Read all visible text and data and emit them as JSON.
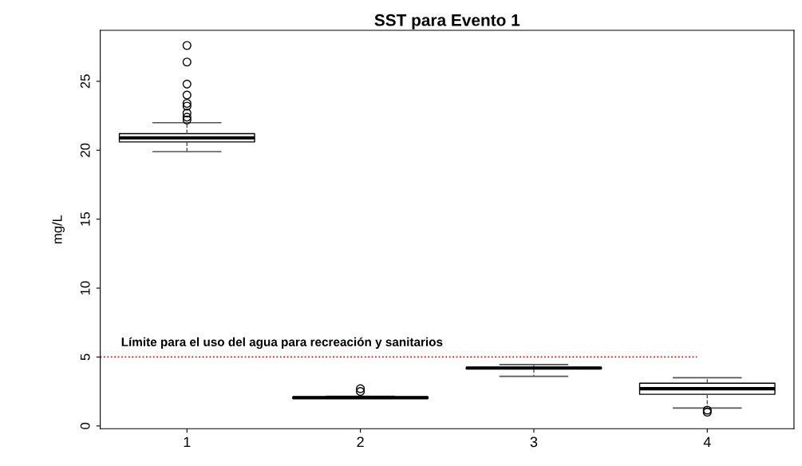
{
  "chart_data": {
    "type": "box",
    "title": "SST para Evento 1",
    "ylabel": "mg/L",
    "categories": [
      "1",
      "2",
      "3",
      "4"
    ],
    "boxes": [
      {
        "low": 19.9,
        "q1": 20.6,
        "median": 20.9,
        "q3": 21.2,
        "high": 22.0,
        "outliers": [
          22.2,
          22.4,
          22.7,
          23.2,
          23.4,
          24.0,
          24.8,
          26.4,
          27.6
        ]
      },
      {
        "low": 2.0,
        "q1": 2.0,
        "median": 2.05,
        "q3": 2.1,
        "high": 2.15,
        "outliers": [
          2.5,
          2.7
        ]
      },
      {
        "low": 3.6,
        "q1": 4.15,
        "median": 4.2,
        "q3": 4.25,
        "high": 4.45
      },
      {
        "low": 1.3,
        "q1": 2.3,
        "median": 2.7,
        "q3": 3.1,
        "high": 3.5,
        "outliers": [
          1.0,
          1.15
        ]
      }
    ],
    "ylim": [
      -0.2,
      28.7
    ],
    "yticks": [
      0,
      5,
      10,
      15,
      20,
      25
    ],
    "ref_lines": [
      {
        "axis": "y",
        "value": 5,
        "label": "Límite para el uso del agua para recreación y sanitarios",
        "color": "#e00000",
        "line_style": "dotted"
      }
    ]
  }
}
